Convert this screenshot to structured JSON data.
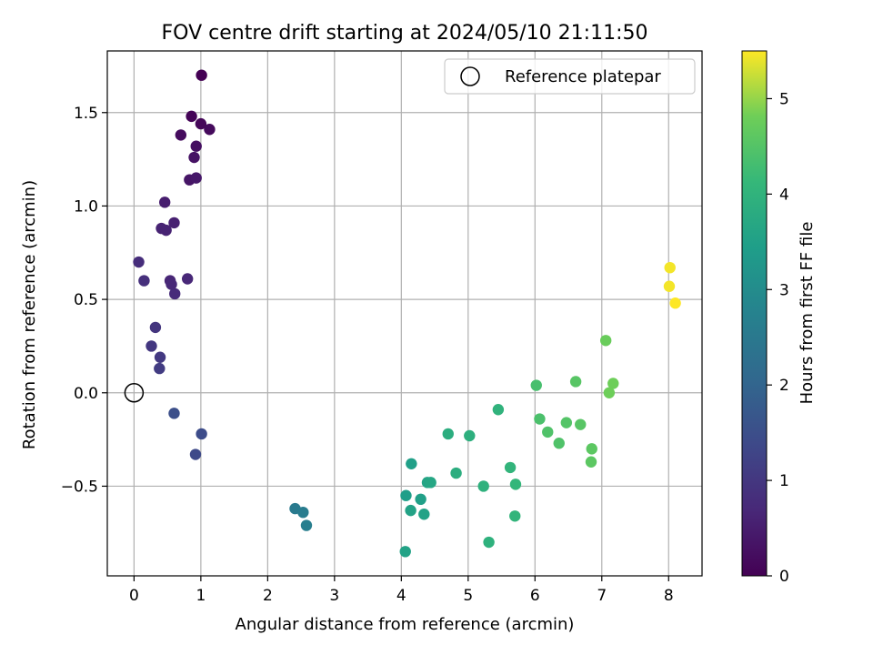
{
  "chart_data": {
    "type": "scatter",
    "title": "FOV centre drift starting at 2024/05/10 21:11:50",
    "xlabel": "Angular distance from reference (arcmin)",
    "ylabel": "Rotation from reference (arcmin)",
    "xlim": [
      -0.4,
      8.5
    ],
    "ylim": [
      -0.98,
      1.83
    ],
    "xticks": [
      0,
      1,
      2,
      3,
      4,
      5,
      6,
      7,
      8
    ],
    "yticks": [
      -0.5,
      0.0,
      0.5,
      1.0,
      1.5
    ],
    "ytick_labels": [
      "−0.5",
      "0.0",
      "0.5",
      "1.0",
      "1.5"
    ],
    "grid": true,
    "legend": {
      "position": "top-right",
      "entries": [
        "Reference platepar"
      ]
    },
    "colorbar": {
      "label": "Hours from first FF file",
      "range": [
        0,
        5.5
      ],
      "ticks": [
        0,
        1,
        2,
        3,
        4,
        5
      ],
      "colormap": "viridis"
    },
    "reference_point": {
      "label": "Reference platepar",
      "x": 0.0,
      "y": 0.0
    },
    "points": [
      {
        "x": 1.01,
        "y": 1.7,
        "c": 0.0
      },
      {
        "x": 0.86,
        "y": 1.48,
        "c": 0.05
      },
      {
        "x": 1.0,
        "y": 1.44,
        "c": 0.1
      },
      {
        "x": 1.13,
        "y": 1.41,
        "c": 0.15
      },
      {
        "x": 0.7,
        "y": 1.38,
        "c": 0.2
      },
      {
        "x": 0.93,
        "y": 1.32,
        "c": 0.25
      },
      {
        "x": 0.9,
        "y": 1.26,
        "c": 0.3
      },
      {
        "x": 0.83,
        "y": 1.14,
        "c": 0.35
      },
      {
        "x": 0.93,
        "y": 1.15,
        "c": 0.4
      },
      {
        "x": 0.46,
        "y": 1.02,
        "c": 0.5
      },
      {
        "x": 0.6,
        "y": 0.91,
        "c": 0.55
      },
      {
        "x": 0.41,
        "y": 0.88,
        "c": 0.6
      },
      {
        "x": 0.48,
        "y": 0.87,
        "c": 0.6
      },
      {
        "x": 0.54,
        "y": 0.6,
        "c": 0.65
      },
      {
        "x": 0.8,
        "y": 0.61,
        "c": 0.68
      },
      {
        "x": 0.56,
        "y": 0.58,
        "c": 0.7
      },
      {
        "x": 0.61,
        "y": 0.53,
        "c": 0.75
      },
      {
        "x": 0.07,
        "y": 0.7,
        "c": 0.8
      },
      {
        "x": 0.15,
        "y": 0.6,
        "c": 0.85
      },
      {
        "x": 0.32,
        "y": 0.35,
        "c": 0.95
      },
      {
        "x": 0.26,
        "y": 0.25,
        "c": 1.0
      },
      {
        "x": 0.39,
        "y": 0.19,
        "c": 1.05
      },
      {
        "x": 0.38,
        "y": 0.13,
        "c": 1.1
      },
      {
        "x": 0.6,
        "y": -0.11,
        "c": 1.5
      },
      {
        "x": 1.01,
        "y": -0.22,
        "c": 1.45
      },
      {
        "x": 0.92,
        "y": -0.33,
        "c": 1.4
      },
      {
        "x": 2.41,
        "y": -0.62,
        "c": 2.55
      },
      {
        "x": 2.53,
        "y": -0.64,
        "c": 2.6
      },
      {
        "x": 2.58,
        "y": -0.71,
        "c": 2.65
      },
      {
        "x": 4.15,
        "y": -0.38,
        "c": 3.5
      },
      {
        "x": 4.07,
        "y": -0.55,
        "c": 3.45
      },
      {
        "x": 4.14,
        "y": -0.63,
        "c": 3.55
      },
      {
        "x": 4.29,
        "y": -0.57,
        "c": 3.5
      },
      {
        "x": 4.39,
        "y": -0.48,
        "c": 3.6
      },
      {
        "x": 4.44,
        "y": -0.48,
        "c": 3.65
      },
      {
        "x": 4.34,
        "y": -0.65,
        "c": 3.55
      },
      {
        "x": 4.06,
        "y": -0.85,
        "c": 3.55
      },
      {
        "x": 4.7,
        "y": -0.22,
        "c": 3.85
      },
      {
        "x": 4.82,
        "y": -0.43,
        "c": 3.85
      },
      {
        "x": 5.02,
        "y": -0.23,
        "c": 3.9
      },
      {
        "x": 5.23,
        "y": -0.5,
        "c": 3.95
      },
      {
        "x": 5.31,
        "y": -0.8,
        "c": 3.95
      },
      {
        "x": 5.45,
        "y": -0.09,
        "c": 4.0
      },
      {
        "x": 5.63,
        "y": -0.4,
        "c": 4.05
      },
      {
        "x": 5.71,
        "y": -0.49,
        "c": 4.1
      },
      {
        "x": 5.7,
        "y": -0.66,
        "c": 4.05
      },
      {
        "x": 6.02,
        "y": 0.04,
        "c": 4.35
      },
      {
        "x": 6.07,
        "y": -0.14,
        "c": 4.4
      },
      {
        "x": 6.19,
        "y": -0.21,
        "c": 4.45
      },
      {
        "x": 6.36,
        "y": -0.27,
        "c": 4.45
      },
      {
        "x": 6.47,
        "y": -0.16,
        "c": 4.5
      },
      {
        "x": 6.61,
        "y": 0.06,
        "c": 4.55
      },
      {
        "x": 6.68,
        "y": -0.17,
        "c": 4.55
      },
      {
        "x": 6.85,
        "y": -0.3,
        "c": 4.6
      },
      {
        "x": 6.84,
        "y": -0.37,
        "c": 4.6
      },
      {
        "x": 7.06,
        "y": 0.28,
        "c": 4.75
      },
      {
        "x": 7.17,
        "y": 0.05,
        "c": 4.8
      },
      {
        "x": 7.11,
        "y": 0.0,
        "c": 4.8
      },
      {
        "x": 8.02,
        "y": 0.67,
        "c": 5.45
      },
      {
        "x": 8.01,
        "y": 0.57,
        "c": 5.45
      },
      {
        "x": 8.1,
        "y": 0.48,
        "c": 5.5
      }
    ]
  }
}
